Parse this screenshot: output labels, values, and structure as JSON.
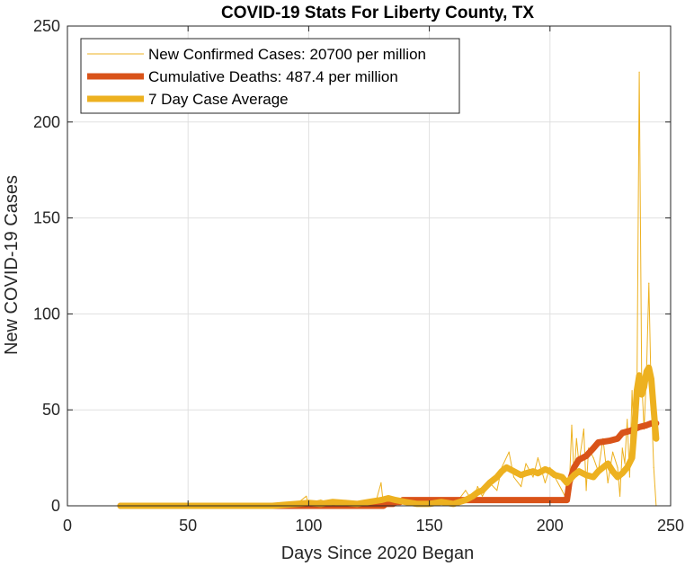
{
  "chart_data": {
    "type": "line",
    "title": "COVID-19 Stats For Liberty County, TX",
    "xlabel": "Days Since 2020 Began",
    "ylabel": "New COVID-19 Cases",
    "xlim": [
      0,
      250
    ],
    "ylim": [
      0,
      250
    ],
    "xticks": [
      0,
      50,
      100,
      150,
      200,
      250
    ],
    "yticks": [
      0,
      50,
      100,
      150,
      200,
      250
    ],
    "grid": true,
    "legend_position": "top-left",
    "colors": {
      "new_cases": "#EDB120",
      "deaths": "#D95319",
      "avg": "#EDB120",
      "grid": "#e0e0e0",
      "axis": "#262626"
    },
    "series": [
      {
        "name": "New Confirmed Cases: 20700 per million",
        "style": "thin",
        "x": [
          22,
          60,
          90,
          95,
          99,
          100,
          101,
          105,
          110,
          115,
          120,
          125,
          128,
          130,
          131,
          133,
          135,
          140,
          145,
          148,
          150,
          155,
          160,
          162,
          165,
          168,
          170,
          172,
          175,
          178,
          180,
          183,
          185,
          188,
          190,
          193,
          195,
          198,
          200,
          202,
          205,
          207,
          208,
          209,
          210,
          211,
          212,
          214,
          215,
          216,
          218,
          220,
          222,
          224,
          226,
          228,
          229,
          230,
          231,
          232,
          233,
          234,
          235,
          236,
          237,
          238,
          239,
          240,
          241,
          242,
          243,
          244
        ],
        "values": [
          0,
          0,
          0,
          1,
          5,
          0,
          2,
          3,
          1,
          2,
          0,
          1,
          3,
          12,
          0,
          5,
          2,
          1,
          3,
          0,
          2,
          1,
          0,
          3,
          8,
          2,
          10,
          5,
          12,
          8,
          20,
          28,
          15,
          10,
          22,
          15,
          25,
          12,
          20,
          15,
          8,
          3,
          10,
          42,
          15,
          35,
          22,
          40,
          8,
          30,
          25,
          18,
          35,
          12,
          28,
          20,
          5,
          30,
          22,
          45,
          15,
          60,
          25,
          50,
          226,
          65,
          40,
          70,
          116,
          55,
          20,
          0
        ]
      },
      {
        "name": "Cumulative Deaths: 487.4 per million",
        "style": "thick",
        "x": [
          22,
          128,
          129,
          130,
          131,
          132,
          133,
          134,
          135,
          136,
          137,
          138,
          139,
          140,
          206,
          207,
          208,
          210,
          212,
          215,
          218,
          220,
          225,
          228,
          230,
          233,
          235,
          237,
          240,
          242,
          244
        ],
        "values": [
          0,
          0,
          0,
          0,
          0,
          1,
          1,
          1,
          1,
          2,
          2,
          2,
          3,
          3,
          3,
          3,
          12,
          20,
          24,
          26,
          30,
          33,
          34,
          35,
          38,
          39,
          40,
          41,
          42,
          43,
          43
        ]
      },
      {
        "name": "7 Day Case Average",
        "style": "thick",
        "x": [
          22,
          85,
          90,
          95,
          100,
          105,
          110,
          115,
          120,
          125,
          130,
          133,
          136,
          140,
          145,
          150,
          155,
          160,
          165,
          168,
          170,
          172,
          175,
          178,
          180,
          182,
          185,
          188,
          190,
          193,
          195,
          198,
          200,
          202,
          205,
          207,
          210,
          212,
          215,
          218,
          220,
          222,
          224,
          226,
          228,
          230,
          232,
          234,
          235,
          236,
          237,
          238,
          239,
          240,
          241,
          242,
          243,
          244
        ],
        "values": [
          0,
          0,
          0.5,
          1,
          1.5,
          1,
          2,
          1.5,
          1,
          2,
          3,
          4,
          3,
          2,
          1,
          1,
          2,
          1,
          3,
          5,
          7,
          8,
          12,
          15,
          18,
          20,
          18,
          16,
          17,
          18,
          17,
          19,
          18,
          16,
          15,
          12,
          16,
          18,
          16,
          15,
          18,
          20,
          22,
          18,
          15,
          17,
          20,
          25,
          40,
          60,
          68,
          58,
          62,
          70,
          72,
          66,
          50,
          35
        ]
      }
    ]
  }
}
